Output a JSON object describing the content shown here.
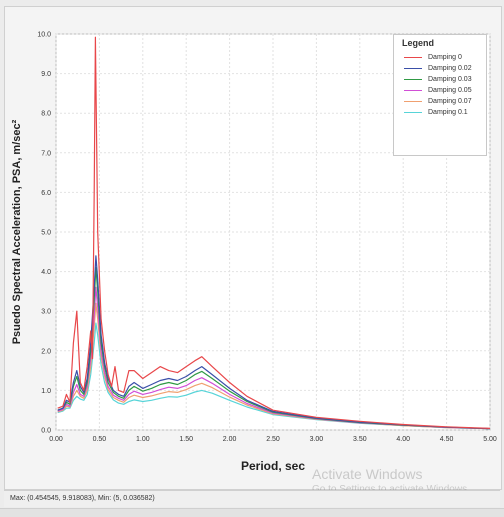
{
  "chart_data": {
    "type": "line",
    "title": "",
    "xlabel": "Period, sec",
    "ylabel": "Psuedo Spectral Acceleration, PSA, m/sec²",
    "xlim": [
      0,
      5
    ],
    "ylim": [
      0,
      10
    ],
    "x_ticks": [
      "0.00",
      "0.50",
      "1.00",
      "1.50",
      "2.00",
      "2.50",
      "3.00",
      "3.50",
      "4.00",
      "4.50",
      "5.00"
    ],
    "y_ticks": [
      "0.0",
      "1.0",
      "2.0",
      "3.0",
      "4.0",
      "5.0",
      "6.0",
      "7.0",
      "8.0",
      "9.0",
      "10.0"
    ],
    "grid": true,
    "legend_title": "Legend",
    "legend_position": "top-right",
    "series": [
      {
        "name": "Damping 0",
        "color": "#e8474a",
        "points": [
          [
            0.02,
            0.55
          ],
          [
            0.08,
            0.6
          ],
          [
            0.12,
            0.9
          ],
          [
            0.16,
            0.7
          ],
          [
            0.2,
            2.2
          ],
          [
            0.24,
            3.0
          ],
          [
            0.28,
            1.2
          ],
          [
            0.32,
            1.0
          ],
          [
            0.36,
            1.6
          ],
          [
            0.4,
            2.5
          ],
          [
            0.42,
            1.8
          ],
          [
            0.44,
            6.0
          ],
          [
            0.454,
            9.92
          ],
          [
            0.48,
            5.0
          ],
          [
            0.52,
            2.8
          ],
          [
            0.56,
            2.0
          ],
          [
            0.6,
            1.4
          ],
          [
            0.64,
            1.1
          ],
          [
            0.68,
            1.6
          ],
          [
            0.72,
            1.0
          ],
          [
            0.78,
            0.95
          ],
          [
            0.84,
            1.5
          ],
          [
            0.9,
            1.5
          ],
          [
            1.0,
            1.3
          ],
          [
            1.1,
            1.45
          ],
          [
            1.2,
            1.6
          ],
          [
            1.3,
            1.5
          ],
          [
            1.4,
            1.45
          ],
          [
            1.5,
            1.6
          ],
          [
            1.6,
            1.75
          ],
          [
            1.68,
            1.85
          ],
          [
            1.8,
            1.6
          ],
          [
            2.0,
            1.2
          ],
          [
            2.2,
            0.85
          ],
          [
            2.5,
            0.5
          ],
          [
            3.0,
            0.32
          ],
          [
            3.5,
            0.22
          ],
          [
            4.0,
            0.14
          ],
          [
            4.5,
            0.08
          ],
          [
            5.0,
            0.04
          ]
        ]
      },
      {
        "name": "Damping 0.02",
        "color": "#3a4fa8",
        "points": [
          [
            0.02,
            0.5
          ],
          [
            0.08,
            0.55
          ],
          [
            0.12,
            0.75
          ],
          [
            0.16,
            0.7
          ],
          [
            0.2,
            1.2
          ],
          [
            0.24,
            1.5
          ],
          [
            0.28,
            1.1
          ],
          [
            0.32,
            0.95
          ],
          [
            0.36,
            1.3
          ],
          [
            0.4,
            2.2
          ],
          [
            0.44,
            3.6
          ],
          [
            0.46,
            4.4
          ],
          [
            0.48,
            3.8
          ],
          [
            0.52,
            2.4
          ],
          [
            0.56,
            1.7
          ],
          [
            0.6,
            1.3
          ],
          [
            0.66,
            1.0
          ],
          [
            0.72,
            0.9
          ],
          [
            0.78,
            0.85
          ],
          [
            0.84,
            1.1
          ],
          [
            0.9,
            1.2
          ],
          [
            1.0,
            1.05
          ],
          [
            1.1,
            1.15
          ],
          [
            1.2,
            1.25
          ],
          [
            1.3,
            1.3
          ],
          [
            1.4,
            1.25
          ],
          [
            1.5,
            1.35
          ],
          [
            1.6,
            1.5
          ],
          [
            1.68,
            1.6
          ],
          [
            1.8,
            1.4
          ],
          [
            2.0,
            1.05
          ],
          [
            2.2,
            0.75
          ],
          [
            2.5,
            0.47
          ],
          [
            3.0,
            0.3
          ],
          [
            3.5,
            0.2
          ],
          [
            4.0,
            0.13
          ],
          [
            4.5,
            0.07
          ],
          [
            5.0,
            0.035
          ]
        ]
      },
      {
        "name": "Damping 0.03",
        "color": "#2f9a44",
        "points": [
          [
            0.02,
            0.5
          ],
          [
            0.08,
            0.55
          ],
          [
            0.12,
            0.7
          ],
          [
            0.16,
            0.65
          ],
          [
            0.2,
            1.1
          ],
          [
            0.24,
            1.35
          ],
          [
            0.28,
            1.0
          ],
          [
            0.32,
            0.9
          ],
          [
            0.36,
            1.2
          ],
          [
            0.4,
            2.0
          ],
          [
            0.44,
            3.3
          ],
          [
            0.46,
            4.1
          ],
          [
            0.48,
            3.5
          ],
          [
            0.52,
            2.2
          ],
          [
            0.56,
            1.6
          ],
          [
            0.6,
            1.2
          ],
          [
            0.66,
            0.95
          ],
          [
            0.72,
            0.85
          ],
          [
            0.78,
            0.8
          ],
          [
            0.84,
            1.0
          ],
          [
            0.9,
            1.1
          ],
          [
            1.0,
            0.98
          ],
          [
            1.1,
            1.05
          ],
          [
            1.2,
            1.15
          ],
          [
            1.3,
            1.2
          ],
          [
            1.4,
            1.15
          ],
          [
            1.5,
            1.25
          ],
          [
            1.6,
            1.4
          ],
          [
            1.68,
            1.48
          ],
          [
            1.8,
            1.3
          ],
          [
            2.0,
            0.98
          ],
          [
            2.2,
            0.72
          ],
          [
            2.5,
            0.45
          ],
          [
            3.0,
            0.29
          ],
          [
            3.5,
            0.19
          ],
          [
            4.0,
            0.12
          ],
          [
            4.5,
            0.07
          ],
          [
            5.0,
            0.035
          ]
        ]
      },
      {
        "name": "Damping 0.05",
        "color": "#d14fd6",
        "points": [
          [
            0.02,
            0.48
          ],
          [
            0.08,
            0.52
          ],
          [
            0.12,
            0.65
          ],
          [
            0.16,
            0.6
          ],
          [
            0.2,
            0.95
          ],
          [
            0.24,
            1.15
          ],
          [
            0.28,
            0.9
          ],
          [
            0.32,
            0.85
          ],
          [
            0.36,
            1.1
          ],
          [
            0.4,
            1.8
          ],
          [
            0.44,
            2.9
          ],
          [
            0.46,
            3.6
          ],
          [
            0.48,
            3.1
          ],
          [
            0.52,
            2.0
          ],
          [
            0.56,
            1.45
          ],
          [
            0.6,
            1.1
          ],
          [
            0.66,
            0.88
          ],
          [
            0.72,
            0.8
          ],
          [
            0.78,
            0.75
          ],
          [
            0.84,
            0.9
          ],
          [
            0.9,
            0.98
          ],
          [
            1.0,
            0.9
          ],
          [
            1.1,
            0.95
          ],
          [
            1.2,
            1.02
          ],
          [
            1.3,
            1.08
          ],
          [
            1.4,
            1.05
          ],
          [
            1.5,
            1.12
          ],
          [
            1.6,
            1.25
          ],
          [
            1.68,
            1.32
          ],
          [
            1.8,
            1.18
          ],
          [
            2.0,
            0.9
          ],
          [
            2.2,
            0.67
          ],
          [
            2.5,
            0.43
          ],
          [
            3.0,
            0.28
          ],
          [
            3.5,
            0.18
          ],
          [
            4.0,
            0.12
          ],
          [
            4.5,
            0.065
          ],
          [
            5.0,
            0.035
          ]
        ]
      },
      {
        "name": "Damping 0.07",
        "color": "#f0a070",
        "points": [
          [
            0.02,
            0.46
          ],
          [
            0.08,
            0.5
          ],
          [
            0.12,
            0.6
          ],
          [
            0.16,
            0.58
          ],
          [
            0.2,
            0.85
          ],
          [
            0.24,
            1.0
          ],
          [
            0.28,
            0.85
          ],
          [
            0.32,
            0.8
          ],
          [
            0.36,
            1.0
          ],
          [
            0.4,
            1.6
          ],
          [
            0.44,
            2.6
          ],
          [
            0.46,
            3.2
          ],
          [
            0.48,
            2.8
          ],
          [
            0.52,
            1.85
          ],
          [
            0.56,
            1.35
          ],
          [
            0.6,
            1.02
          ],
          [
            0.66,
            0.82
          ],
          [
            0.72,
            0.75
          ],
          [
            0.78,
            0.7
          ],
          [
            0.84,
            0.82
          ],
          [
            0.9,
            0.88
          ],
          [
            1.0,
            0.82
          ],
          [
            1.1,
            0.86
          ],
          [
            1.2,
            0.92
          ],
          [
            1.3,
            0.97
          ],
          [
            1.4,
            0.95
          ],
          [
            1.5,
            1.02
          ],
          [
            1.6,
            1.12
          ],
          [
            1.68,
            1.18
          ],
          [
            1.8,
            1.07
          ],
          [
            2.0,
            0.83
          ],
          [
            2.2,
            0.63
          ],
          [
            2.5,
            0.41
          ],
          [
            3.0,
            0.27
          ],
          [
            3.5,
            0.18
          ],
          [
            4.0,
            0.11
          ],
          [
            4.5,
            0.06
          ],
          [
            5.0,
            0.033
          ]
        ]
      },
      {
        "name": "Damping 0.1",
        "color": "#57d4d8",
        "points": [
          [
            0.02,
            0.44
          ],
          [
            0.08,
            0.48
          ],
          [
            0.12,
            0.55
          ],
          [
            0.16,
            0.55
          ],
          [
            0.2,
            0.75
          ],
          [
            0.24,
            0.85
          ],
          [
            0.28,
            0.78
          ],
          [
            0.32,
            0.75
          ],
          [
            0.36,
            0.9
          ],
          [
            0.4,
            1.4
          ],
          [
            0.44,
            2.2
          ],
          [
            0.46,
            2.7
          ],
          [
            0.48,
            2.4
          ],
          [
            0.52,
            1.65
          ],
          [
            0.56,
            1.2
          ],
          [
            0.6,
            0.95
          ],
          [
            0.66,
            0.76
          ],
          [
            0.72,
            0.68
          ],
          [
            0.78,
            0.65
          ],
          [
            0.84,
            0.72
          ],
          [
            0.9,
            0.76
          ],
          [
            1.0,
            0.72
          ],
          [
            1.1,
            0.75
          ],
          [
            1.2,
            0.8
          ],
          [
            1.3,
            0.84
          ],
          [
            1.4,
            0.83
          ],
          [
            1.5,
            0.88
          ],
          [
            1.6,
            0.96
          ],
          [
            1.68,
            1.0
          ],
          [
            1.8,
            0.93
          ],
          [
            2.0,
            0.75
          ],
          [
            2.2,
            0.58
          ],
          [
            2.5,
            0.39
          ],
          [
            3.0,
            0.26
          ],
          [
            3.5,
            0.17
          ],
          [
            4.0,
            0.11
          ],
          [
            4.5,
            0.06
          ],
          [
            5.0,
            0.032
          ]
        ]
      }
    ]
  },
  "status": {
    "minmax": "Max: (0.454545, 9.918083),   Min: (5, 0.036582)"
  },
  "watermark": {
    "title": "Activate Windows",
    "subtitle": "Go to Settings to activate Windows."
  }
}
